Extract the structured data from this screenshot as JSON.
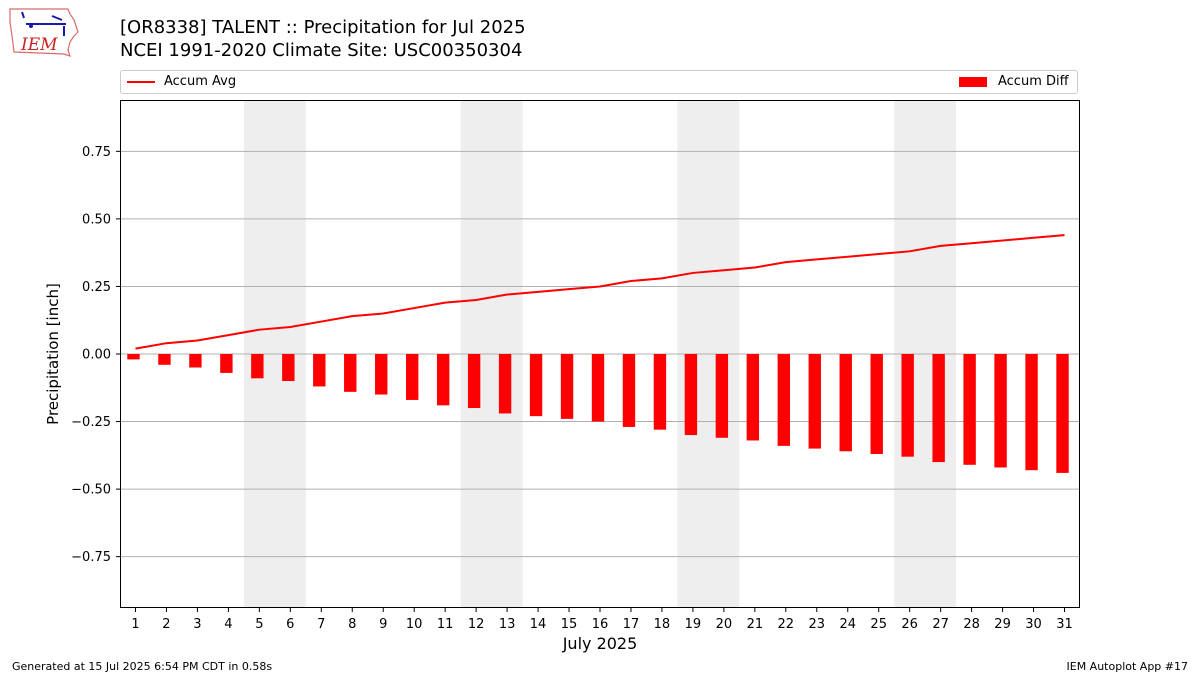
{
  "header": {
    "title_line1": "[OR8338] TALENT :: Precipitation for Jul 2025",
    "title_line2": "NCEI 1991-2020 Climate Site: USC00350304"
  },
  "logo": {
    "text": "IEM",
    "icon": "iem-iowa-logo"
  },
  "legend": {
    "line_label": "Accum Avg",
    "bar_label": "Accum Diff",
    "placement": "top, above plot"
  },
  "footer": {
    "left": "Generated at 15 Jul 2025 6:54 PM CDT in 0.58s",
    "right": "IEM Autoplot App #17"
  },
  "colors": {
    "series": "#ff0000",
    "weekend_shade": "#eeeeee",
    "grid": "#b0b0b0"
  },
  "chart_data": {
    "type": "bar",
    "xlabel": "July 2025",
    "ylabel": "Precipitation [inch]",
    "x": [
      1,
      2,
      3,
      4,
      5,
      6,
      7,
      8,
      9,
      10,
      11,
      12,
      13,
      14,
      15,
      16,
      17,
      18,
      19,
      20,
      21,
      22,
      23,
      24,
      25,
      26,
      27,
      28,
      29,
      30,
      31
    ],
    "xlim": [
      0.5,
      31.5
    ],
    "ylim": [
      -0.94,
      0.94
    ],
    "yticks": [
      -0.75,
      -0.5,
      -0.25,
      0.0,
      0.25,
      0.5,
      0.75
    ],
    "ytick_labels": [
      "−0.75",
      "−0.50",
      "−0.25",
      "0.00",
      "0.25",
      "0.50",
      "0.75"
    ],
    "grid": "horizontal",
    "shaded_weekends": [
      [
        5,
        6
      ],
      [
        12,
        13
      ],
      [
        19,
        20
      ],
      [
        26,
        27
      ]
    ],
    "series": [
      {
        "name": "Accum Avg",
        "type": "line",
        "values": [
          0.02,
          0.04,
          0.05,
          0.07,
          0.09,
          0.1,
          0.12,
          0.14,
          0.15,
          0.17,
          0.19,
          0.2,
          0.22,
          0.23,
          0.24,
          0.25,
          0.27,
          0.28,
          0.3,
          0.31,
          0.32,
          0.34,
          0.35,
          0.36,
          0.37,
          0.38,
          0.4,
          0.41,
          0.42,
          0.43,
          0.44
        ]
      },
      {
        "name": "Accum Diff",
        "type": "bar",
        "values": [
          -0.02,
          -0.04,
          -0.05,
          -0.07,
          -0.09,
          -0.1,
          -0.12,
          -0.14,
          -0.15,
          -0.17,
          -0.19,
          -0.2,
          -0.22,
          -0.23,
          -0.24,
          -0.25,
          -0.27,
          -0.28,
          -0.3,
          -0.31,
          -0.32,
          -0.34,
          -0.35,
          -0.36,
          -0.37,
          -0.38,
          -0.4,
          -0.41,
          -0.42,
          -0.43,
          -0.44
        ]
      }
    ]
  }
}
